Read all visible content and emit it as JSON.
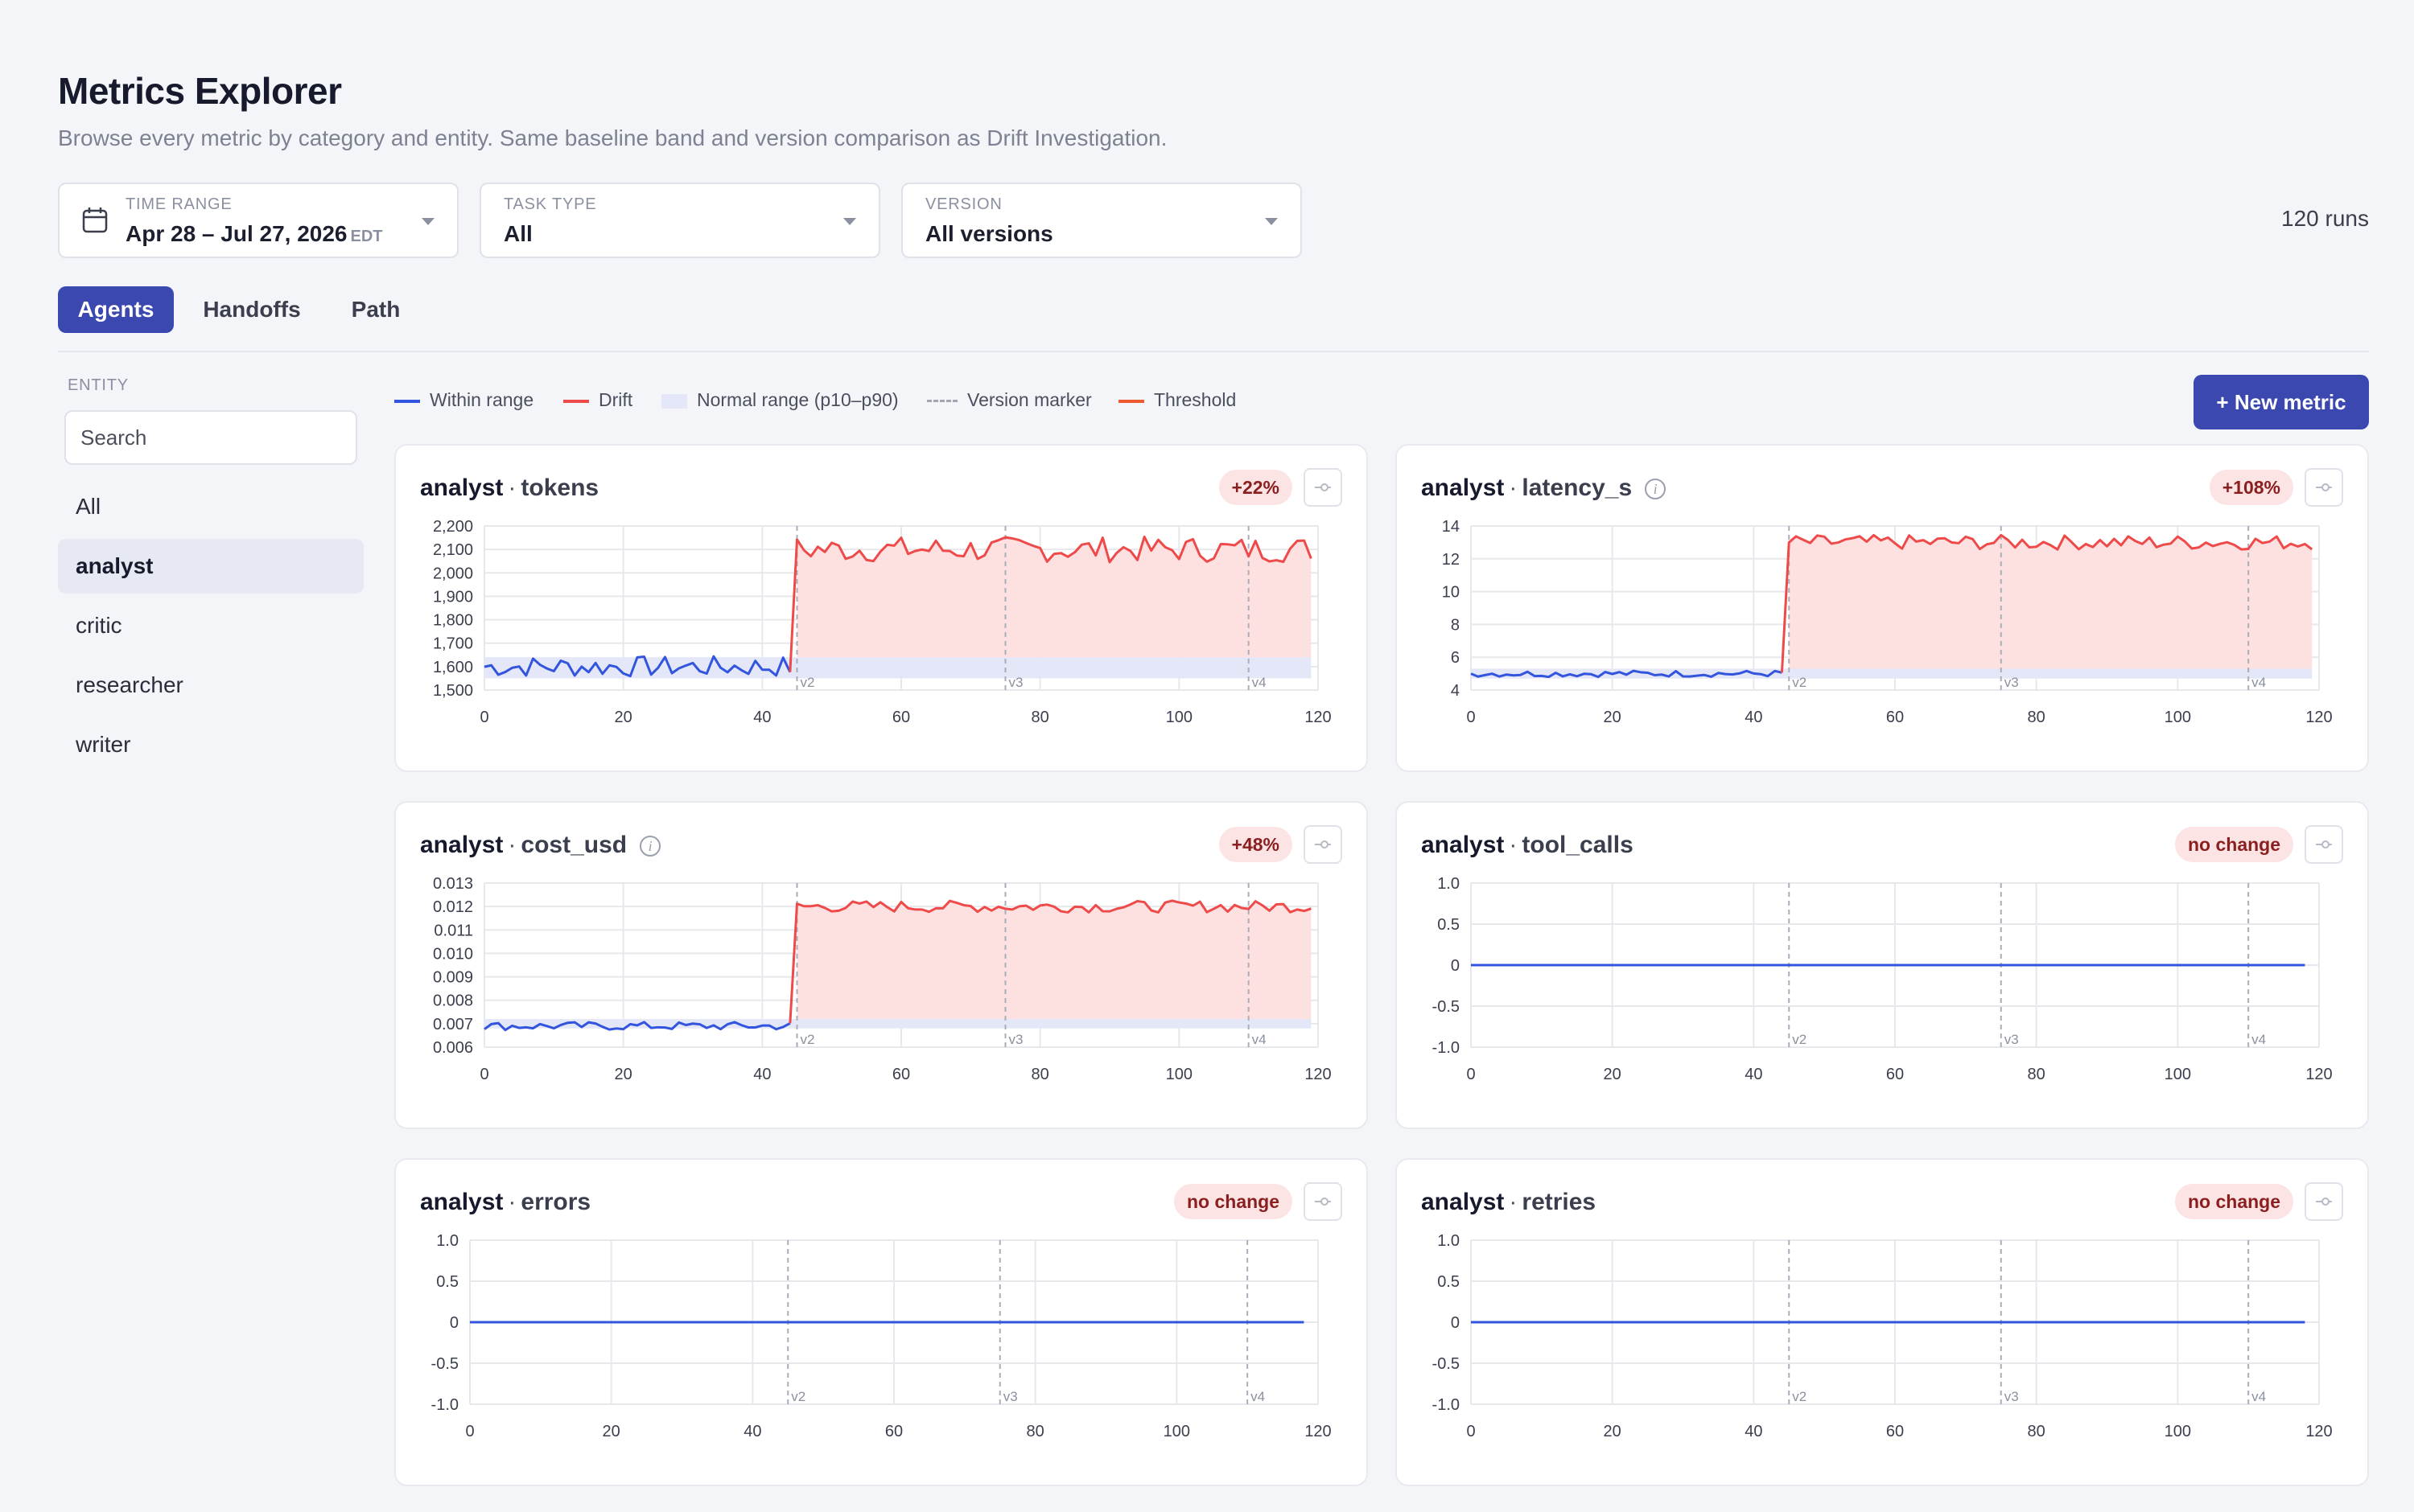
{
  "page": {
    "title": "Metrics Explorer",
    "subtitle": "Browse every metric by category and entity. Same baseline band and version comparison as Drift Investigation."
  },
  "filters": {
    "time_range": {
      "label": "TIME RANGE",
      "value": "Apr 28 – Jul 27, 2026",
      "tz": "EDT"
    },
    "task_type": {
      "label": "TASK TYPE",
      "value": "All"
    },
    "version": {
      "label": "VERSION",
      "value": "All versions"
    }
  },
  "runs_count": "120 runs",
  "tabs": [
    {
      "label": "Agents",
      "active": true
    },
    {
      "label": "Handoffs",
      "active": false
    },
    {
      "label": "Path",
      "active": false
    }
  ],
  "sidebar": {
    "label": "ENTITY",
    "search_placeholder": "Search",
    "items": [
      {
        "label": "All",
        "active": false
      },
      {
        "label": "analyst",
        "active": true
      },
      {
        "label": "critic",
        "active": false
      },
      {
        "label": "researcher",
        "active": false
      },
      {
        "label": "writer",
        "active": false
      }
    ]
  },
  "legend": [
    "Within range",
    "Drift",
    "Normal range (p10–p90)",
    "Version marker",
    "Threshold"
  ],
  "new_metric_label": "+ New metric",
  "colors": {
    "within": "#3355dd",
    "drift": "#ef4a4a",
    "band": "#e3e7f7",
    "drift_fill": "#fde0e0",
    "threshold": "#ec5a2e",
    "accent": "#3b48b0"
  },
  "chart_data": [
    {
      "type": "line",
      "entity": "analyst",
      "metric": "tokens",
      "info": false,
      "badge": "+22%",
      "ylim": [
        1500,
        2200
      ],
      "yticks": [
        "1,500",
        "1,600",
        "1,700",
        "1,800",
        "1,900",
        "2,000",
        "2,100",
        "2,200"
      ],
      "xlim": [
        0,
        120
      ],
      "xticks": [
        "0",
        "20",
        "40",
        "60",
        "80",
        "100",
        "120"
      ],
      "versions": [
        {
          "x": 45,
          "label": "v2"
        },
        {
          "x": 75,
          "label": "v3"
        },
        {
          "x": 110,
          "label": "v4"
        }
      ],
      "band": [
        1550,
        1640
      ],
      "drift_start": 45,
      "baseline": 1600,
      "drift_level": 2100,
      "noise_pre": 45,
      "noise_post": 55
    },
    {
      "type": "line",
      "entity": "analyst",
      "metric": "latency_s",
      "info": true,
      "badge": "+108%",
      "ylim": [
        4,
        14
      ],
      "yticks": [
        "4",
        "6",
        "8",
        "10",
        "12",
        "14"
      ],
      "xlim": [
        0,
        120
      ],
      "xticks": [
        "0",
        "20",
        "40",
        "60",
        "80",
        "100",
        "120"
      ],
      "versions": [
        {
          "x": 45,
          "label": "v2"
        },
        {
          "x": 75,
          "label": "v3"
        },
        {
          "x": 110,
          "label": "v4"
        }
      ],
      "band": [
        4.7,
        5.3
      ],
      "drift_start": 45,
      "baseline": 5.0,
      "drift_level": 13.0,
      "noise_pre": 0.2,
      "noise_post": 0.45
    },
    {
      "type": "line",
      "entity": "analyst",
      "metric": "cost_usd",
      "info": true,
      "badge": "+48%",
      "ylim": [
        0.006,
        0.013
      ],
      "yticks": [
        "0.006",
        "0.007",
        "0.008",
        "0.009",
        "0.010",
        "0.011",
        "0.012",
        "0.013"
      ],
      "xlim": [
        0,
        120
      ],
      "xticks": [
        "0",
        "20",
        "40",
        "60",
        "80",
        "100",
        "120"
      ],
      "versions": [
        {
          "x": 45,
          "label": "v2"
        },
        {
          "x": 75,
          "label": "v3"
        },
        {
          "x": 110,
          "label": "v4"
        }
      ],
      "band": [
        0.0068,
        0.0072
      ],
      "drift_start": 45,
      "baseline": 0.0069,
      "drift_level": 0.012,
      "noise_pre": 0.00018,
      "noise_post": 0.00025
    },
    {
      "type": "line",
      "entity": "analyst",
      "metric": "tool_calls",
      "info": false,
      "badge": "no change",
      "ylim": [
        -1,
        1
      ],
      "yticks": [
        "-1.0",
        "-0.5",
        "0",
        "0.5",
        "1.0"
      ],
      "xlim": [
        0,
        120
      ],
      "xticks": [
        "0",
        "20",
        "40",
        "60",
        "80",
        "100",
        "120"
      ],
      "versions": [
        {
          "x": 45,
          "label": "v2"
        },
        {
          "x": 75,
          "label": "v3"
        },
        {
          "x": 110,
          "label": "v4"
        }
      ],
      "flat": 0
    },
    {
      "type": "line",
      "entity": "analyst",
      "metric": "errors",
      "info": false,
      "badge": "no change",
      "ylim": [
        -1,
        1
      ],
      "yticks": [
        "-1.0",
        "-0.5",
        "0",
        "0.5",
        "1.0"
      ],
      "xlim": [
        0,
        120
      ],
      "xticks": [
        "0",
        "20",
        "40",
        "60",
        "80",
        "100",
        "120"
      ],
      "versions": [
        {
          "x": 45,
          "label": "v2"
        },
        {
          "x": 75,
          "label": "v3"
        },
        {
          "x": 110,
          "label": "v4"
        }
      ],
      "flat": 0
    },
    {
      "type": "line",
      "entity": "analyst",
      "metric": "retries",
      "info": false,
      "badge": "no change",
      "ylim": [
        -1,
        1
      ],
      "yticks": [
        "-1.0",
        "-0.5",
        "0",
        "0.5",
        "1.0"
      ],
      "xlim": [
        0,
        120
      ],
      "xticks": [
        "0",
        "20",
        "40",
        "60",
        "80",
        "100",
        "120"
      ],
      "versions": [
        {
          "x": 45,
          "label": "v2"
        },
        {
          "x": 75,
          "label": "v3"
        },
        {
          "x": 110,
          "label": "v4"
        }
      ],
      "flat": 0
    }
  ]
}
